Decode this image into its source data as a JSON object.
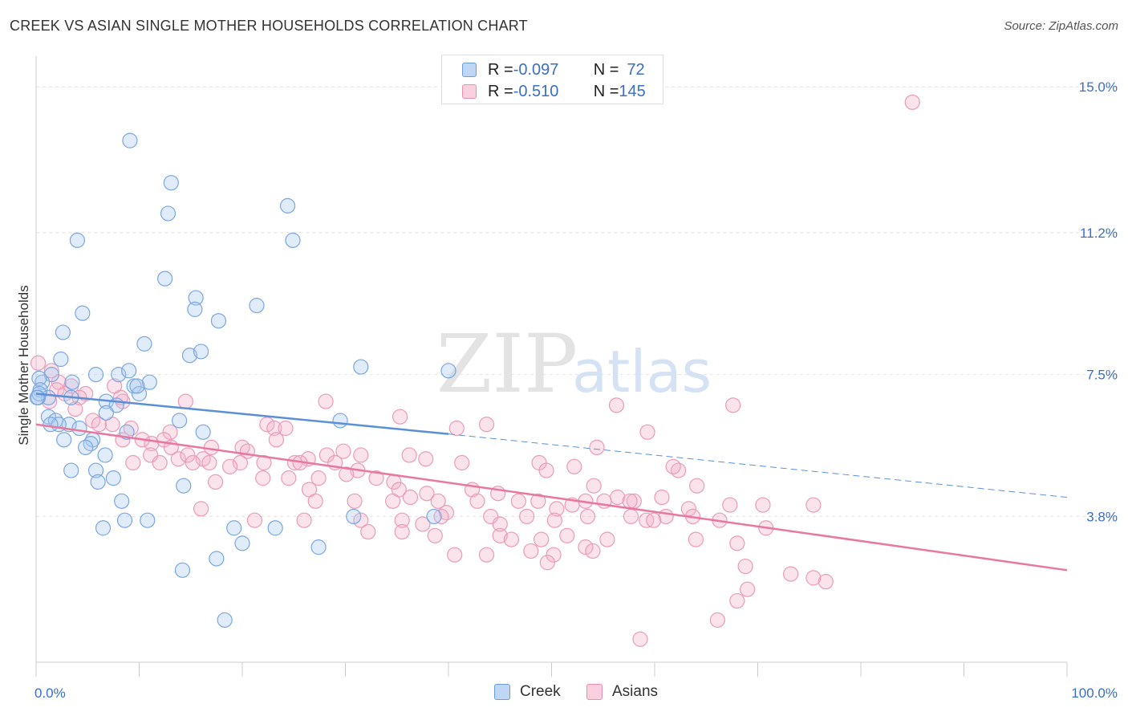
{
  "title": "CREEK VS ASIAN SINGLE MOTHER HOUSEHOLDS CORRELATION CHART",
  "source": "Source: ZipAtlas.com",
  "watermark": {
    "zip": "ZIP",
    "atlas": "atlas"
  },
  "legend_top": {
    "rows": [
      {
        "r_label": "R = ",
        "r_value": "-0.097",
        "n_label": "N = ",
        "n_value": "72",
        "color": "#a9c8f0"
      },
      {
        "r_label": "R = ",
        "r_value": "-0.510",
        "n_label": "N = ",
        "n_value": "145",
        "color": "#f5b6ca"
      }
    ]
  },
  "legend_bottom": [
    "Creek",
    "Asians"
  ],
  "chart_data": {
    "type": "scatter",
    "title": "CREEK VS ASIAN SINGLE MOTHER HOUSEHOLDS CORRELATION CHART",
    "xlabel": "",
    "ylabel": "Single Mother Households",
    "xlim": [
      0,
      100
    ],
    "ylim": [
      0,
      15.8
    ],
    "x_tick_labels": [
      "0.0%",
      "100.0%"
    ],
    "y_tick_values": [
      3.8,
      7.5,
      11.2,
      15.0
    ],
    "y_tick_labels": [
      "3.8%",
      "7.5%",
      "11.2%",
      "15.0%"
    ],
    "grid": "horizontal dashed",
    "legend_position": "top-center",
    "colors": {
      "creek": "#5b8fd8",
      "asians": "#e8789f",
      "tick_label": "#3a6fc4"
    },
    "series": [
      {
        "name": "Creek",
        "r": -0.097,
        "n": 72,
        "trend": {
          "x0": 0,
          "y0": 7.0,
          "x1": 40,
          "y1": 5.95,
          "dash_x1": 100,
          "dash_y1": 4.3
        },
        "points": [
          [
            9.1,
            13.6
          ],
          [
            13.1,
            12.5
          ],
          [
            12.8,
            11.7
          ],
          [
            24.4,
            11.9
          ],
          [
            4.0,
            11.0
          ],
          [
            24.9,
            11.0
          ],
          [
            12.5,
            10.0
          ],
          [
            15.5,
            9.5
          ],
          [
            15.4,
            9.2
          ],
          [
            21.4,
            9.3
          ],
          [
            4.5,
            9.1
          ],
          [
            17.7,
            8.9
          ],
          [
            2.6,
            8.6
          ],
          [
            10.5,
            8.3
          ],
          [
            14.9,
            8.0
          ],
          [
            16.0,
            8.1
          ],
          [
            2.4,
            7.9
          ],
          [
            31.5,
            7.7
          ],
          [
            8.0,
            7.5
          ],
          [
            9.0,
            7.6
          ],
          [
            1.5,
            7.5
          ],
          [
            3.5,
            7.3
          ],
          [
            5.8,
            7.5
          ],
          [
            11.0,
            7.3
          ],
          [
            0.6,
            7.3
          ],
          [
            0.3,
            7.4
          ],
          [
            9.5,
            7.2
          ],
          [
            10.0,
            7.0
          ],
          [
            0.4,
            7.1
          ],
          [
            9.8,
            7.2
          ],
          [
            3.4,
            6.9
          ],
          [
            1.2,
            6.9
          ],
          [
            0.2,
            6.9
          ],
          [
            6.8,
            6.8
          ],
          [
            7.8,
            6.7
          ],
          [
            6.8,
            6.5
          ],
          [
            1.2,
            6.4
          ],
          [
            1.9,
            6.3
          ],
          [
            3.2,
            6.2
          ],
          [
            2.2,
            6.2
          ],
          [
            1.4,
            6.2
          ],
          [
            13.9,
            6.3
          ],
          [
            29.5,
            6.3
          ],
          [
            4.2,
            6.1
          ],
          [
            8.8,
            6.0
          ],
          [
            16.2,
            6.0
          ],
          [
            2.7,
            5.8
          ],
          [
            5.5,
            5.8
          ],
          [
            5.3,
            5.7
          ],
          [
            4.8,
            5.6
          ],
          [
            6.7,
            5.4
          ],
          [
            3.4,
            5.0
          ],
          [
            5.8,
            5.0
          ],
          [
            7.5,
            4.8
          ],
          [
            6.0,
            4.7
          ],
          [
            14.3,
            4.6
          ],
          [
            8.3,
            4.2
          ],
          [
            30.8,
            3.8
          ],
          [
            38.6,
            3.8
          ],
          [
            8.6,
            3.7
          ],
          [
            10.8,
            3.7
          ],
          [
            6.5,
            3.5
          ],
          [
            19.2,
            3.5
          ],
          [
            23.2,
            3.5
          ],
          [
            20.0,
            3.1
          ],
          [
            27.4,
            3.0
          ],
          [
            17.5,
            2.7
          ],
          [
            14.2,
            2.4
          ],
          [
            18.3,
            1.1
          ],
          [
            40.0,
            7.6
          ],
          [
            0.3,
            7.0
          ],
          [
            0.1,
            6.9
          ]
        ]
      },
      {
        "name": "Asians",
        "r": -0.51,
        "n": 145,
        "trend": {
          "x0": 0,
          "y0": 6.2,
          "x1": 100,
          "y1": 2.4
        },
        "points": [
          [
            85.0,
            14.6
          ],
          [
            0.2,
            7.8
          ],
          [
            1.5,
            7.6
          ],
          [
            2.2,
            7.3
          ],
          [
            2.0,
            7.1
          ],
          [
            3.4,
            7.2
          ],
          [
            4.8,
            7.0
          ],
          [
            7.6,
            7.2
          ],
          [
            1.3,
            6.8
          ],
          [
            2.8,
            7.0
          ],
          [
            4.2,
            6.9
          ],
          [
            8.4,
            6.8
          ],
          [
            14.5,
            6.8
          ],
          [
            8.2,
            6.9
          ],
          [
            3.8,
            6.6
          ],
          [
            28.1,
            6.8
          ],
          [
            56.3,
            6.7
          ],
          [
            67.6,
            6.7
          ],
          [
            35.3,
            6.4
          ],
          [
            5.5,
            6.3
          ],
          [
            6.1,
            6.2
          ],
          [
            7.4,
            6.2
          ],
          [
            22.4,
            6.2
          ],
          [
            40.8,
            6.1
          ],
          [
            43.7,
            6.2
          ],
          [
            59.3,
            6.0
          ],
          [
            9.2,
            6.1
          ],
          [
            13.0,
            6.0
          ],
          [
            23.1,
            6.1
          ],
          [
            24.2,
            6.1
          ],
          [
            8.4,
            5.8
          ],
          [
            10.3,
            5.8
          ],
          [
            11.2,
            5.7
          ],
          [
            12.4,
            5.8
          ],
          [
            13.1,
            5.6
          ],
          [
            20.0,
            5.6
          ],
          [
            23.3,
            5.8
          ],
          [
            20.5,
            5.5
          ],
          [
            17.0,
            5.6
          ],
          [
            29.8,
            5.5
          ],
          [
            36.2,
            5.4
          ],
          [
            54.4,
            5.6
          ],
          [
            11.1,
            5.4
          ],
          [
            13.8,
            5.3
          ],
          [
            14.7,
            5.4
          ],
          [
            16.2,
            5.3
          ],
          [
            19.8,
            5.2
          ],
          [
            25.1,
            5.2
          ],
          [
            26.4,
            5.3
          ],
          [
            28.2,
            5.4
          ],
          [
            31.5,
            5.4
          ],
          [
            37.8,
            5.3
          ],
          [
            41.3,
            5.2
          ],
          [
            48.8,
            5.2
          ],
          [
            49.5,
            5.0
          ],
          [
            52.2,
            5.1
          ],
          [
            62.3,
            5.0
          ],
          [
            61.8,
            5.1
          ],
          [
            9.4,
            5.2
          ],
          [
            12.0,
            5.2
          ],
          [
            15.2,
            5.2
          ],
          [
            16.8,
            5.2
          ],
          [
            18.8,
            5.1
          ],
          [
            22.1,
            5.2
          ],
          [
            25.6,
            5.2
          ],
          [
            29.0,
            5.2
          ],
          [
            31.2,
            5.0
          ],
          [
            30.1,
            4.9
          ],
          [
            33.0,
            4.8
          ],
          [
            27.4,
            4.8
          ],
          [
            34.7,
            4.7
          ],
          [
            24.5,
            4.8
          ],
          [
            17.4,
            4.7
          ],
          [
            22.0,
            4.8
          ],
          [
            26.5,
            4.5
          ],
          [
            35.2,
            4.5
          ],
          [
            42.3,
            4.5
          ],
          [
            54.1,
            4.6
          ],
          [
            55.1,
            4.2
          ],
          [
            56.4,
            4.3
          ],
          [
            58.0,
            4.2
          ],
          [
            64.1,
            4.6
          ],
          [
            27.1,
            4.2
          ],
          [
            30.9,
            4.2
          ],
          [
            34.6,
            4.2
          ],
          [
            36.3,
            4.3
          ],
          [
            37.9,
            4.4
          ],
          [
            39.0,
            4.2
          ],
          [
            42.8,
            4.2
          ],
          [
            44.8,
            4.4
          ],
          [
            46.8,
            4.2
          ],
          [
            48.7,
            4.2
          ],
          [
            53.3,
            4.2
          ],
          [
            57.6,
            4.2
          ],
          [
            60.7,
            4.3
          ],
          [
            63.3,
            4.0
          ],
          [
            67.3,
            4.1
          ],
          [
            70.5,
            4.1
          ],
          [
            75.4,
            4.1
          ],
          [
            16.0,
            4.0
          ],
          [
            39.8,
            3.9
          ],
          [
            44.1,
            3.8
          ],
          [
            47.6,
            3.8
          ],
          [
            50.5,
            4.0
          ],
          [
            52.0,
            4.1
          ],
          [
            53.5,
            3.8
          ],
          [
            57.7,
            3.8
          ],
          [
            61.1,
            3.8
          ],
          [
            63.7,
            3.8
          ],
          [
            39.3,
            3.8
          ],
          [
            35.5,
            3.7
          ],
          [
            31.5,
            3.7
          ],
          [
            26.0,
            3.7
          ],
          [
            21.2,
            3.7
          ],
          [
            37.5,
            3.6
          ],
          [
            45.0,
            3.6
          ],
          [
            50.3,
            3.7
          ],
          [
            59.2,
            3.7
          ],
          [
            59.9,
            3.7
          ],
          [
            66.3,
            3.7
          ],
          [
            70.8,
            3.5
          ],
          [
            32.2,
            3.4
          ],
          [
            35.5,
            3.4
          ],
          [
            38.7,
            3.3
          ],
          [
            45.0,
            3.3
          ],
          [
            46.1,
            3.2
          ],
          [
            49.0,
            3.2
          ],
          [
            51.5,
            3.3
          ],
          [
            55.4,
            3.2
          ],
          [
            64.0,
            3.2
          ],
          [
            68.0,
            3.1
          ],
          [
            53.3,
            3.0
          ],
          [
            54.0,
            2.9
          ],
          [
            48.0,
            2.9
          ],
          [
            43.7,
            2.8
          ],
          [
            40.6,
            2.8
          ],
          [
            50.2,
            2.8
          ],
          [
            49.6,
            2.6
          ],
          [
            68.8,
            2.5
          ],
          [
            73.2,
            2.3
          ],
          [
            76.6,
            2.1
          ],
          [
            75.4,
            2.2
          ],
          [
            69.0,
            1.9
          ],
          [
            68.0,
            1.6
          ],
          [
            66.1,
            1.1
          ],
          [
            58.6,
            0.6
          ]
        ]
      }
    ]
  }
}
